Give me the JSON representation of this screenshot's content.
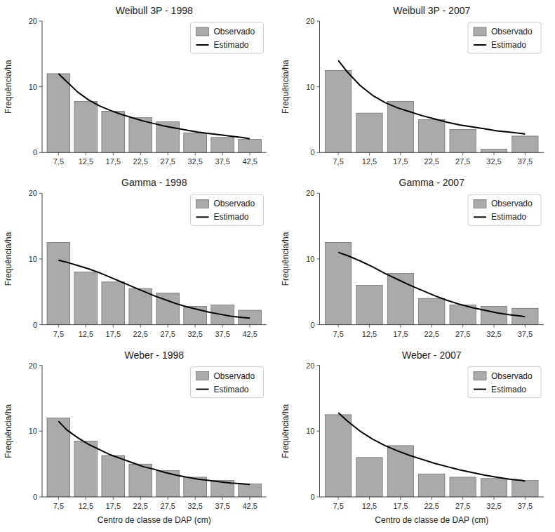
{
  "chart_data": [
    {
      "type": "bar",
      "title": "Weibull 3P - 1998",
      "x": [
        7.5,
        12.5,
        17.5,
        22.5,
        27.5,
        32.5,
        37.5,
        42.5
      ],
      "series": [
        {
          "name": "Observado",
          "type": "bar",
          "color": "#aaaaaa",
          "values": [
            12.0,
            7.8,
            6.3,
            5.3,
            4.7,
            3.0,
            2.3,
            2.0
          ]
        },
        {
          "name": "Estimado",
          "type": "line",
          "color": "#000000",
          "x": [
            7.5,
            9.0,
            11.0,
            13.0,
            15.0,
            17.0,
            19.0,
            21.0,
            23.0,
            25.0,
            27.0,
            29.0,
            31.0,
            33.0,
            35.0,
            37.0,
            39.0,
            41.0,
            42.5
          ],
          "values": [
            12.0,
            10.8,
            9.2,
            8.0,
            7.1,
            6.4,
            5.8,
            5.3,
            4.8,
            4.4,
            4.0,
            3.7,
            3.4,
            3.1,
            2.9,
            2.7,
            2.5,
            2.3,
            2.1
          ]
        }
      ],
      "xlim": [
        4.5,
        45.5
      ],
      "xticks": [
        {
          "value": 7.5,
          "label": "7,5"
        },
        {
          "value": 12.5,
          "label": "12,5"
        },
        {
          "value": 17.5,
          "label": "17,5"
        },
        {
          "value": 22.5,
          "label": "22,5"
        },
        {
          "value": 27.5,
          "label": "27,5"
        },
        {
          "value": 32.5,
          "label": "32,5"
        },
        {
          "value": 37.5,
          "label": "37,5"
        },
        {
          "value": 42.5,
          "label": "42,5"
        }
      ],
      "ylim": [
        0,
        20
      ],
      "yticks": [
        0,
        10,
        20
      ],
      "ylabel": "Frequência/ha",
      "legend": "upper right"
    },
    {
      "type": "bar",
      "title": "Weibull 3P - 2007",
      "x": [
        7.5,
        12.5,
        17.5,
        22.5,
        27.5,
        32.5,
        37.5
      ],
      "series": [
        {
          "name": "Observado",
          "type": "bar",
          "color": "#aaaaaa",
          "values": [
            12.5,
            6.0,
            7.8,
            5.0,
            3.5,
            0.5,
            2.5
          ]
        },
        {
          "name": "Estimado",
          "type": "line",
          "color": "#000000",
          "x": [
            7.5,
            9.0,
            11.0,
            13.0,
            15.0,
            17.0,
            19.0,
            21.0,
            23.0,
            25.0,
            27.0,
            29.0,
            31.0,
            33.0,
            35.0,
            37.0,
            37.5
          ],
          "values": [
            14.0,
            12.2,
            10.2,
            8.7,
            7.6,
            6.8,
            6.2,
            5.6,
            5.1,
            4.6,
            4.2,
            3.9,
            3.6,
            3.3,
            3.1,
            2.9,
            2.8
          ]
        }
      ],
      "xlim": [
        4.5,
        40.5
      ],
      "xticks": [
        {
          "value": 7.5,
          "label": "7,5"
        },
        {
          "value": 12.5,
          "label": "12,5"
        },
        {
          "value": 17.5,
          "label": "17,5"
        },
        {
          "value": 22.5,
          "label": "22,5"
        },
        {
          "value": 27.5,
          "label": "27,5"
        },
        {
          "value": 32.5,
          "label": "32,5"
        },
        {
          "value": 37.5,
          "label": "37,5"
        }
      ],
      "ylim": [
        0,
        20
      ],
      "yticks": [
        0,
        10,
        20
      ],
      "ylabel": "Frequência/ha",
      "legend": "upper right"
    },
    {
      "type": "bar",
      "title": "Gamma - 1998",
      "x": [
        7.5,
        12.5,
        17.5,
        22.5,
        27.5,
        32.5,
        37.5,
        42.5
      ],
      "series": [
        {
          "name": "Observado",
          "type": "bar",
          "color": "#aaaaaa",
          "values": [
            12.5,
            8.0,
            6.5,
            5.5,
            4.8,
            2.8,
            3.0,
            2.2
          ]
        },
        {
          "name": "Estimado",
          "type": "line",
          "color": "#000000",
          "x": [
            7.5,
            9.0,
            11.0,
            13.0,
            15.0,
            17.0,
            19.0,
            21.0,
            23.0,
            25.0,
            27.0,
            29.0,
            31.0,
            33.0,
            35.0,
            37.0,
            39.0,
            41.0,
            42.5
          ],
          "values": [
            9.8,
            9.5,
            9.0,
            8.5,
            7.9,
            7.2,
            6.5,
            5.8,
            5.1,
            4.4,
            3.8,
            3.2,
            2.7,
            2.3,
            1.9,
            1.6,
            1.3,
            1.1,
            1.0
          ]
        }
      ],
      "xlim": [
        4.5,
        45.5
      ],
      "xticks": [
        {
          "value": 7.5,
          "label": "7,5"
        },
        {
          "value": 12.5,
          "label": "12,5"
        },
        {
          "value": 17.5,
          "label": "17,5"
        },
        {
          "value": 22.5,
          "label": "22,5"
        },
        {
          "value": 27.5,
          "label": "27,5"
        },
        {
          "value": 32.5,
          "label": "32,5"
        },
        {
          "value": 37.5,
          "label": "37,5"
        },
        {
          "value": 42.5,
          "label": "42,5"
        }
      ],
      "ylim": [
        0,
        20
      ],
      "yticks": [
        0,
        10,
        20
      ],
      "ylabel": "Frequência/ha",
      "legend": "upper right"
    },
    {
      "type": "bar",
      "title": "Gamma - 2007",
      "x": [
        7.5,
        12.5,
        17.5,
        22.5,
        27.5,
        32.5,
        37.5
      ],
      "series": [
        {
          "name": "Observado",
          "type": "bar",
          "color": "#aaaaaa",
          "values": [
            12.5,
            6.0,
            7.8,
            4.0,
            3.0,
            2.8,
            2.5
          ]
        },
        {
          "name": "Estimado",
          "type": "line",
          "color": "#000000",
          "x": [
            7.5,
            9.0,
            11.0,
            13.0,
            15.0,
            17.0,
            19.0,
            21.0,
            23.0,
            25.0,
            27.0,
            29.0,
            31.0,
            33.0,
            35.0,
            37.0,
            37.5
          ],
          "values": [
            11.0,
            10.5,
            9.7,
            8.8,
            7.8,
            6.9,
            6.0,
            5.2,
            4.4,
            3.7,
            3.1,
            2.6,
            2.2,
            1.8,
            1.5,
            1.3,
            1.2
          ]
        }
      ],
      "xlim": [
        4.5,
        40.5
      ],
      "xticks": [
        {
          "value": 7.5,
          "label": "7,5"
        },
        {
          "value": 12.5,
          "label": "12,5"
        },
        {
          "value": 17.5,
          "label": "17,5"
        },
        {
          "value": 22.5,
          "label": "22,5"
        },
        {
          "value": 27.5,
          "label": "27,5"
        },
        {
          "value": 32.5,
          "label": "32,5"
        },
        {
          "value": 37.5,
          "label": "37,5"
        }
      ],
      "ylim": [
        0,
        20
      ],
      "yticks": [
        0,
        10,
        20
      ],
      "ylabel": "Frequência/ha",
      "legend": "upper right"
    },
    {
      "type": "bar",
      "title": "Weber - 1998",
      "x": [
        7.5,
        12.5,
        17.5,
        22.5,
        27.5,
        32.5,
        37.5,
        42.5
      ],
      "series": [
        {
          "name": "Observado",
          "type": "bar",
          "color": "#aaaaaa",
          "values": [
            12.0,
            8.5,
            6.3,
            5.0,
            4.0,
            3.0,
            2.5,
            2.0
          ]
        },
        {
          "name": "Estimado",
          "type": "line",
          "color": "#000000",
          "x": [
            7.5,
            9.0,
            11.0,
            13.0,
            15.0,
            17.0,
            19.0,
            21.0,
            23.0,
            25.0,
            27.0,
            29.0,
            31.0,
            33.0,
            35.0,
            37.0,
            39.0,
            41.0,
            42.5
          ],
          "values": [
            11.5,
            10.2,
            9.0,
            8.0,
            7.2,
            6.4,
            5.8,
            5.2,
            4.6,
            4.2,
            3.7,
            3.3,
            3.0,
            2.7,
            2.5,
            2.3,
            2.1,
            2.0,
            1.9
          ]
        }
      ],
      "xlim": [
        4.5,
        45.5
      ],
      "xticks": [
        {
          "value": 7.5,
          "label": "7,5"
        },
        {
          "value": 12.5,
          "label": "12,5"
        },
        {
          "value": 17.5,
          "label": "17,5"
        },
        {
          "value": 22.5,
          "label": "22,5"
        },
        {
          "value": 27.5,
          "label": "27,5"
        },
        {
          "value": 32.5,
          "label": "32,5"
        },
        {
          "value": 37.5,
          "label": "37,5"
        },
        {
          "value": 42.5,
          "label": "42,5"
        }
      ],
      "ylim": [
        0,
        20
      ],
      "yticks": [
        0,
        10,
        20
      ],
      "ylabel": "Frequência/ha",
      "xlabel": "Centro de classe de DAP (cm)",
      "legend": "upper right"
    },
    {
      "type": "bar",
      "title": "Weber - 2007",
      "x": [
        7.5,
        12.5,
        17.5,
        22.5,
        27.5,
        32.5,
        37.5
      ],
      "series": [
        {
          "name": "Observado",
          "type": "bar",
          "color": "#aaaaaa",
          "values": [
            12.5,
            6.0,
            7.8,
            3.5,
            3.0,
            2.8,
            2.5
          ]
        },
        {
          "name": "Estimado",
          "type": "line",
          "color": "#000000",
          "x": [
            7.5,
            9.0,
            11.0,
            13.0,
            15.0,
            17.0,
            19.0,
            21.0,
            23.0,
            25.0,
            27.0,
            29.0,
            31.0,
            33.0,
            35.0,
            37.0,
            37.5
          ],
          "values": [
            12.8,
            11.5,
            10.0,
            8.8,
            7.8,
            7.0,
            6.3,
            5.7,
            5.1,
            4.6,
            4.1,
            3.7,
            3.3,
            3.0,
            2.7,
            2.5,
            2.4
          ]
        }
      ],
      "xlim": [
        4.5,
        40.5
      ],
      "xticks": [
        {
          "value": 7.5,
          "label": "7,5"
        },
        {
          "value": 12.5,
          "label": "12,5"
        },
        {
          "value": 17.5,
          "label": "17,5"
        },
        {
          "value": 22.5,
          "label": "22,5"
        },
        {
          "value": 27.5,
          "label": "27,5"
        },
        {
          "value": 32.5,
          "label": "32,5"
        },
        {
          "value": 37.5,
          "label": "37,5"
        }
      ],
      "ylim": [
        0,
        20
      ],
      "yticks": [
        0,
        10,
        20
      ],
      "ylabel": "Frequência/ha",
      "xlabel": "Centro de classe de DAP (cm)",
      "legend": "upper right"
    }
  ]
}
